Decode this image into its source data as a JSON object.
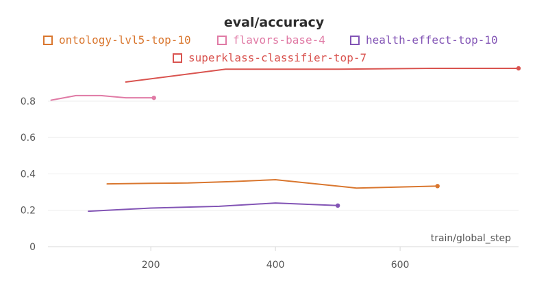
{
  "chart_data": {
    "type": "line",
    "title": "eval/accuracy",
    "xlabel": "train/global_step",
    "ylabel": "",
    "xlim": [
      35,
      790
    ],
    "ylim": [
      0,
      0.98
    ],
    "xticks": [
      200,
      400,
      600
    ],
    "yticks": [
      0,
      0.2,
      0.4,
      0.6,
      0.8
    ],
    "xtick_labels": [
      "200",
      "400",
      "600"
    ],
    "ytick_labels": [
      "0",
      "0.2",
      "0.4",
      "0.6",
      "0.8"
    ],
    "grid": true,
    "legend_position": "top",
    "series": [
      {
        "name": "ontology-lvl5-top-10",
        "color": "#d9762e",
        "x": [
          130,
          200,
          260,
          330,
          400,
          530,
          660
        ],
        "y": [
          0.345,
          0.348,
          0.35,
          0.358,
          0.368,
          0.322,
          0.333
        ]
      },
      {
        "name": "flavors-base-4",
        "color": "#e07aa5",
        "x": [
          40,
          80,
          120,
          160,
          205
        ],
        "y": [
          0.805,
          0.83,
          0.83,
          0.818,
          0.818
        ]
      },
      {
        "name": "health-effect-top-10",
        "color": "#8254b5",
        "x": [
          100,
          200,
          310,
          400,
          500
        ],
        "y": [
          0.195,
          0.212,
          0.222,
          0.24,
          0.226
        ]
      },
      {
        "name": "superklass-classifier-top-7",
        "color": "#d9534f",
        "x": [
          160,
          320,
          500,
          650,
          790
        ],
        "y": [
          0.905,
          0.975,
          0.975,
          0.98,
          0.98
        ]
      }
    ]
  }
}
